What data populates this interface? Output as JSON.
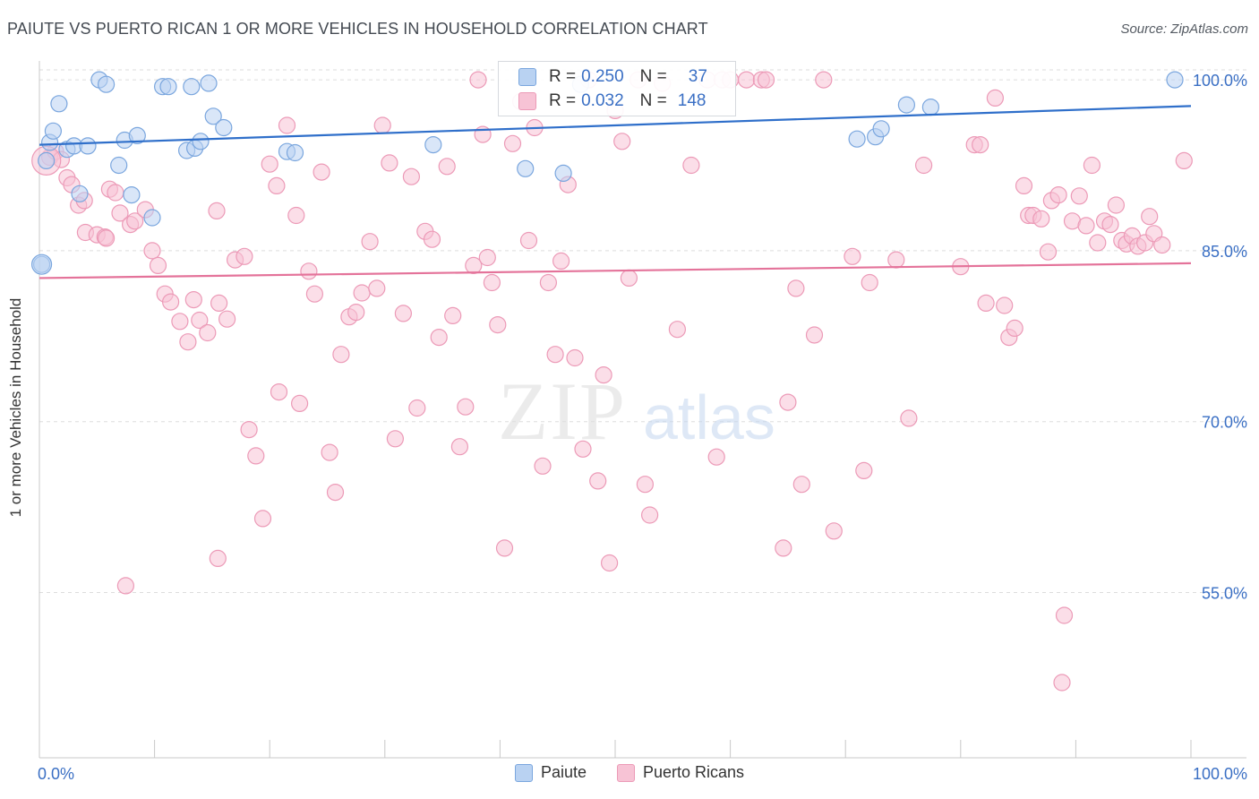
{
  "header": {
    "title": "PAIUTE VS PUERTO RICAN 1 OR MORE VEHICLES IN HOUSEHOLD CORRELATION CHART",
    "source": "Source: ZipAtlas.com"
  },
  "watermark": {
    "zip": "ZIP",
    "atlas": "atlas"
  },
  "stats": {
    "paiute": {
      "r_label": "R =",
      "r_value": "0.250",
      "n_label": "N =",
      "n_value": "37"
    },
    "puerto": {
      "r_label": "R =",
      "r_value": "0.032",
      "n_label": "N =",
      "n_value": "148"
    }
  },
  "colors": {
    "paiute_fill": "#b9d2f2",
    "paiute_stroke": "#7aa6de",
    "paiute_line": "#2f6fca",
    "puerto_fill": "#f7c3d5",
    "puerto_stroke": "#ec9ab7",
    "puerto_line": "#e4739a",
    "grid": "#dddddd",
    "axis_text": "#3a6fc4"
  },
  "chart_data": {
    "type": "scatter",
    "title": "PAIUTE VS PUERTO RICAN 1 OR MORE VEHICLES IN HOUSEHOLD CORRELATION CHART",
    "xlabel": "",
    "ylabel": "1 or more Vehicles in Household",
    "xlim": [
      0,
      100
    ],
    "ylim": [
      40.5,
      101.5
    ],
    "x_tick_labels": [
      "0.0%",
      "100.0%"
    ],
    "y_ticks": [
      55,
      70,
      85,
      100
    ],
    "y_tick_labels": [
      "55.0%",
      "70.0%",
      "85.0%",
      "100.0%"
    ],
    "grid": true,
    "legend_position": "bottom",
    "series": [
      {
        "name": "Paiute",
        "r": 0.25,
        "n": 37,
        "trend": [
          [
            0,
            94.3
          ],
          [
            100,
            97.7
          ]
        ],
        "points": [
          [
            0.2,
            83.8
          ],
          [
            0.9,
            94.5
          ],
          [
            1.2,
            95.5
          ],
          [
            1.7,
            97.9
          ],
          [
            2.4,
            93.9
          ],
          [
            3.0,
            94.2
          ],
          [
            3.5,
            90.0
          ],
          [
            4.2,
            94.2
          ],
          [
            5.2,
            100.0
          ],
          [
            5.8,
            99.6
          ],
          [
            6.9,
            92.5
          ],
          [
            7.4,
            94.7
          ],
          [
            8.0,
            89.9
          ],
          [
            9.8,
            87.9
          ],
          [
            8.5,
            95.1
          ],
          [
            10.7,
            99.4
          ],
          [
            11.2,
            99.4
          ],
          [
            13.2,
            99.4
          ],
          [
            14.7,
            99.7
          ],
          [
            12.8,
            93.8
          ],
          [
            13.5,
            94.0
          ],
          [
            14.0,
            94.6
          ],
          [
            15.1,
            96.8
          ],
          [
            16.0,
            95.8
          ],
          [
            21.5,
            93.7
          ],
          [
            22.2,
            93.6
          ],
          [
            34.2,
            94.3
          ],
          [
            42.2,
            92.2
          ],
          [
            45.5,
            91.8
          ],
          [
            47.0,
            99.6
          ],
          [
            71.0,
            94.8
          ],
          [
            72.6,
            95.0
          ],
          [
            73.1,
            95.7
          ],
          [
            75.3,
            97.8
          ],
          [
            77.4,
            97.6
          ],
          [
            98.6,
            100.0
          ],
          [
            0.6,
            92.9
          ]
        ]
      },
      {
        "name": "Puerto Ricans",
        "r": 0.032,
        "n": 148,
        "trend": [
          [
            0,
            82.6
          ],
          [
            100,
            83.9
          ]
        ],
        "points": [
          [
            0.9,
            93.2
          ],
          [
            1.4,
            93.7
          ],
          [
            1.9,
            93.0
          ],
          [
            2.4,
            91.4
          ],
          [
            2.8,
            90.8
          ],
          [
            3.4,
            89.0
          ],
          [
            3.9,
            89.4
          ],
          [
            4.0,
            86.6
          ],
          [
            5.0,
            86.4
          ],
          [
            5.7,
            86.2
          ],
          [
            6.1,
            90.4
          ],
          [
            6.6,
            90.1
          ],
          [
            7.0,
            88.3
          ],
          [
            7.9,
            87.3
          ],
          [
            8.3,
            87.6
          ],
          [
            9.2,
            88.6
          ],
          [
            9.8,
            85.0
          ],
          [
            10.3,
            83.7
          ],
          [
            10.9,
            81.2
          ],
          [
            11.4,
            80.5
          ],
          [
            12.2,
            78.8
          ],
          [
            12.9,
            77.0
          ],
          [
            13.4,
            80.7
          ],
          [
            13.9,
            78.9
          ],
          [
            14.6,
            77.8
          ],
          [
            15.4,
            88.5
          ],
          [
            15.6,
            80.4
          ],
          [
            16.3,
            79.0
          ],
          [
            17.0,
            84.2
          ],
          [
            17.8,
            84.5
          ],
          [
            18.2,
            69.3
          ],
          [
            18.8,
            67.0
          ],
          [
            19.4,
            61.5
          ],
          [
            20.0,
            92.6
          ],
          [
            20.6,
            90.7
          ],
          [
            20.8,
            72.6
          ],
          [
            21.5,
            96.0
          ],
          [
            22.3,
            88.1
          ],
          [
            22.6,
            71.6
          ],
          [
            23.4,
            83.2
          ],
          [
            23.9,
            81.2
          ],
          [
            24.5,
            91.9
          ],
          [
            25.2,
            67.3
          ],
          [
            25.7,
            63.8
          ],
          [
            26.2,
            75.9
          ],
          [
            26.9,
            79.2
          ],
          [
            27.5,
            79.6
          ],
          [
            28.0,
            81.3
          ],
          [
            28.7,
            85.8
          ],
          [
            29.3,
            81.7
          ],
          [
            29.8,
            96.0
          ],
          [
            30.4,
            92.7
          ],
          [
            30.9,
            68.5
          ],
          [
            31.6,
            79.5
          ],
          [
            32.3,
            91.5
          ],
          [
            32.8,
            71.2
          ],
          [
            33.5,
            86.7
          ],
          [
            34.1,
            86.0
          ],
          [
            34.7,
            77.4
          ],
          [
            35.4,
            92.4
          ],
          [
            35.9,
            79.3
          ],
          [
            36.5,
            67.8
          ],
          [
            37.0,
            71.3
          ],
          [
            37.7,
            83.7
          ],
          [
            38.1,
            100.0
          ],
          [
            38.5,
            95.2
          ],
          [
            38.9,
            84.4
          ],
          [
            39.3,
            82.2
          ],
          [
            39.8,
            78.5
          ],
          [
            40.4,
            58.9
          ],
          [
            41.1,
            94.4
          ],
          [
            41.8,
            98.1
          ],
          [
            42.5,
            85.9
          ],
          [
            43.0,
            95.8
          ],
          [
            43.7,
            66.1
          ],
          [
            44.2,
            82.2
          ],
          [
            44.8,
            75.9
          ],
          [
            45.3,
            84.1
          ],
          [
            45.9,
            90.8
          ],
          [
            46.5,
            75.6
          ],
          [
            47.2,
            67.6
          ],
          [
            47.7,
            100.0
          ],
          [
            48.5,
            64.8
          ],
          [
            49.0,
            74.1
          ],
          [
            49.5,
            57.6
          ],
          [
            50.0,
            97.3
          ],
          [
            50.6,
            94.6
          ],
          [
            51.2,
            82.6
          ],
          [
            52.0,
            100.0
          ],
          [
            52.6,
            64.5
          ],
          [
            53.0,
            61.8
          ],
          [
            54.1,
            99.7
          ],
          [
            55.4,
            78.1
          ],
          [
            56.6,
            92.5
          ],
          [
            58.0,
            100.0
          ],
          [
            58.8,
            66.9
          ],
          [
            59.3,
            100.0
          ],
          [
            60.0,
            100.0
          ],
          [
            61.4,
            100.0
          ],
          [
            62.7,
            100.0
          ],
          [
            63.1,
            100.0
          ],
          [
            64.6,
            58.9
          ],
          [
            65.0,
            71.7
          ],
          [
            65.7,
            81.7
          ],
          [
            66.2,
            64.5
          ],
          [
            67.3,
            77.6
          ],
          [
            68.1,
            100.0
          ],
          [
            69.0,
            60.4
          ],
          [
            70.6,
            84.5
          ],
          [
            71.6,
            65.7
          ],
          [
            72.1,
            82.2
          ],
          [
            74.4,
            84.2
          ],
          [
            75.5,
            70.3
          ],
          [
            76.8,
            92.5
          ],
          [
            80.0,
            83.6
          ],
          [
            81.2,
            94.3
          ],
          [
            81.7,
            94.3
          ],
          [
            82.2,
            80.4
          ],
          [
            83.0,
            98.4
          ],
          [
            83.8,
            80.2
          ],
          [
            84.2,
            77.4
          ],
          [
            84.7,
            78.2
          ],
          [
            85.5,
            90.7
          ],
          [
            85.9,
            88.1
          ],
          [
            86.3,
            88.1
          ],
          [
            87.0,
            87.8
          ],
          [
            87.6,
            84.9
          ],
          [
            87.9,
            89.4
          ],
          [
            88.5,
            89.9
          ],
          [
            89.0,
            53.0
          ],
          [
            89.7,
            87.6
          ],
          [
            90.3,
            89.8
          ],
          [
            90.9,
            87.2
          ],
          [
            91.4,
            92.5
          ],
          [
            91.9,
            85.7
          ],
          [
            92.5,
            87.6
          ],
          [
            93.0,
            87.3
          ],
          [
            93.5,
            89.0
          ],
          [
            94.0,
            85.9
          ],
          [
            94.4,
            85.6
          ],
          [
            94.9,
            86.3
          ],
          [
            95.4,
            85.4
          ],
          [
            96.0,
            85.7
          ],
          [
            96.4,
            88.0
          ],
          [
            96.8,
            86.5
          ],
          [
            97.5,
            85.5
          ],
          [
            88.8,
            47.1
          ],
          [
            7.5,
            55.6
          ],
          [
            15.5,
            58.0
          ],
          [
            5.8,
            86.1
          ],
          [
            99.4,
            92.9
          ]
        ]
      }
    ]
  }
}
